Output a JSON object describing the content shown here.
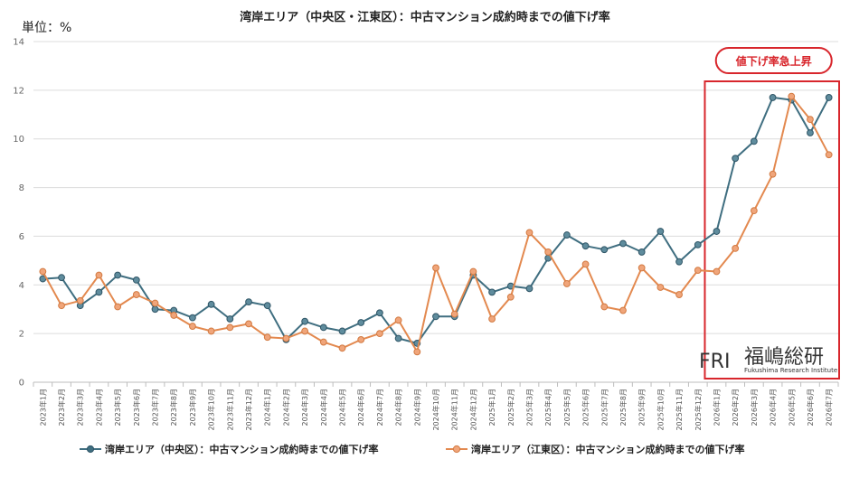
{
  "chart_data": {
    "type": "line",
    "title": "湾岸エリア（中央区・江東区）：中古マンション成約時までの値下げ率",
    "unit_label": "単位：%",
    "ylim": [
      0,
      14
    ],
    "yticks": [
      0,
      2,
      4,
      6,
      8,
      10,
      12,
      14
    ],
    "grid": true,
    "legend_position": "bottom",
    "categories": [
      "2023年1月",
      "2023年2月",
      "2023年3月",
      "2023年4月",
      "2023年5月",
      "2023年6月",
      "2023年7月",
      "2023年8月",
      "2023年9月",
      "2023年10月",
      "2023年11月",
      "2023年12月",
      "2024年1月",
      "2024年2月",
      "2024年3月",
      "2024年4月",
      "2024年5月",
      "2024年6月",
      "2024年7月",
      "2024年8月",
      "2024年9月",
      "2024年10月",
      "2024年11月",
      "2024年12月",
      "2025年1月",
      "2025年2月",
      "2025年3月",
      "2025年4月",
      "2025年5月",
      "2025年6月",
      "2025年7月",
      "2025年8月",
      "2025年9月",
      "2025年10月",
      "2025年11月",
      "2025年12月",
      "2026年1月",
      "2026年2月",
      "2026年3月",
      "2026年4月",
      "2026年5月",
      "2026年6月",
      "2026年7月"
    ],
    "series": [
      {
        "name": "湾岸エリア（中央区）：中古マンション成約時までの値下げ率",
        "color": "#3f6e80",
        "values": [
          4.25,
          4.3,
          3.15,
          3.7,
          4.4,
          4.2,
          3.0,
          2.95,
          2.65,
          3.2,
          2.6,
          3.3,
          3.15,
          1.75,
          2.5,
          2.25,
          2.1,
          2.45,
          2.85,
          1.8,
          1.6,
          2.7,
          2.7,
          4.4,
          3.7,
          3.95,
          3.85,
          5.1,
          6.05,
          5.6,
          5.45,
          5.7,
          5.35,
          6.2,
          4.95,
          5.65,
          6.2,
          9.2,
          9.9,
          11.7,
          11.6,
          10.25,
          11.7
        ]
      },
      {
        "name": "湾岸エリア（江東区）：中古マンション成約時までの値下げ率",
        "color": "#e3894f",
        "values": [
          4.55,
          3.15,
          3.35,
          4.4,
          3.1,
          3.6,
          3.25,
          2.75,
          2.3,
          2.1,
          2.25,
          2.4,
          1.85,
          1.8,
          2.1,
          1.65,
          1.4,
          1.75,
          2.0,
          2.55,
          1.25,
          4.7,
          2.8,
          4.55,
          2.6,
          3.5,
          6.15,
          5.35,
          4.05,
          4.85,
          3.1,
          2.95,
          4.7,
          3.9,
          3.6,
          4.6,
          4.55,
          5.5,
          7.05,
          8.55,
          11.75,
          10.8,
          9.35
        ]
      }
    ],
    "annotation": {
      "text": "値下げ率急上昇",
      "start_category": "2026年1月",
      "end_category": "2026年7月",
      "color": "#d8262c"
    }
  },
  "logo": {
    "mark": "FRI",
    "name_jp": "福嶋総研",
    "name_en": "Fukushima Research Institute"
  }
}
